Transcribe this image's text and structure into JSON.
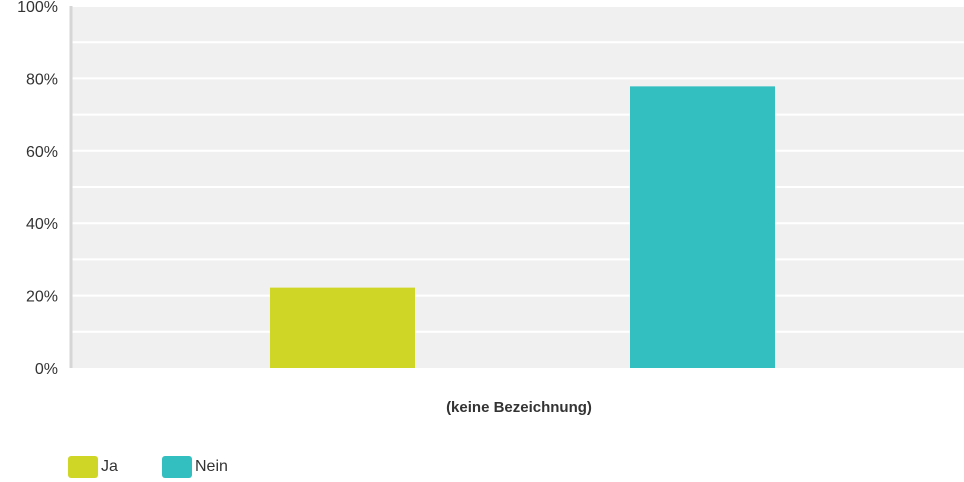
{
  "chart_data": {
    "type": "bar",
    "categories": [
      "(keine Bezeichnung)"
    ],
    "xlabel": "(keine Bezeichnung)",
    "ylim": [
      0,
      100
    ],
    "yticks": [
      "0%",
      "20%",
      "40%",
      "60%",
      "80%",
      "100%"
    ],
    "grid": true,
    "legend_position": "bottom-left",
    "series": [
      {
        "name": "Ja",
        "color": "#d0d626",
        "values": [
          22.2
        ]
      },
      {
        "name": "Nein",
        "color": "#33bec0",
        "values": [
          77.8
        ]
      }
    ]
  }
}
